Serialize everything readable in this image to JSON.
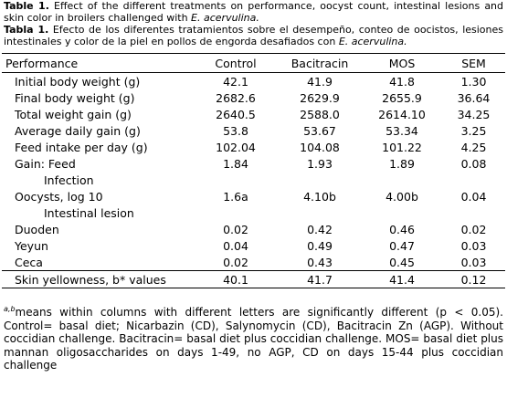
{
  "caption_en": {
    "label": "Table 1.",
    "text": "Effect of the different treatments on performance, oocyst count, intestinal lesions and skin color in broilers challenged with",
    "species": "E. acervulina."
  },
  "caption_es": {
    "label": "Tabla 1.",
    "text": "Efecto de los diferentes tratamientos sobre el desempeño, conteo de oocistos, lesiones intestinales y color de la piel en pollos de engorda desafiados con",
    "species": "E. acervulina."
  },
  "table": {
    "header": [
      "Performance",
      "Control",
      "Bacitracin",
      "MOS",
      "SEM"
    ],
    "rows": [
      [
        "Initial body weight (g)",
        "42.1",
        "41.9",
        "41.8",
        "1.30"
      ],
      [
        "Final body weight (g)",
        "2682.6",
        "2629.9",
        "2655.9",
        "36.64"
      ],
      [
        "Total weight gain (g)",
        "2640.5",
        "2588.0",
        "2614.10",
        "34.25"
      ],
      [
        "Average daily gain (g)",
        "53.8",
        "53.67",
        "53.34",
        "3.25"
      ],
      [
        "Feed intake per day (g)",
        "102.04",
        "104.08",
        "101.22",
        "4.25"
      ],
      [
        "Gain: Feed",
        "1.84",
        "1.93",
        "1.89",
        "0.08"
      ],
      [
        "Infection"
      ],
      [
        "Oocysts, log 10",
        "1.6a",
        "4.10b",
        "4.00b",
        "0.04"
      ],
      [
        "Intestinal lesion"
      ],
      [
        "Duoden",
        "0.02",
        "0.42",
        "0.46",
        "0.02"
      ],
      [
        "Yeyun",
        "0.04",
        "0.49",
        "0.47",
        "0.03"
      ],
      [
        "Ceca",
        "0.02",
        "0.43",
        "0.45",
        "0.03"
      ],
      [
        "Skin yellowness, b* values",
        "40.1",
        "41.7",
        "41.4",
        "0.12"
      ]
    ]
  },
  "footnote": {
    "superscript": "a,b",
    "text": "means within columns with different letters are significantly different (p < 0.05). Control= basal diet; Nicarbazin (CD), Salynomycin (CD), Bacitracin Zn (AGP). Without coccidian challenge. Bacitracin= basal diet plus coccidian challenge. MOS= basal diet plus mannan oligosaccharides on days 1-49, no AGP, CD on days 15-44 plus coccidian challenge"
  }
}
